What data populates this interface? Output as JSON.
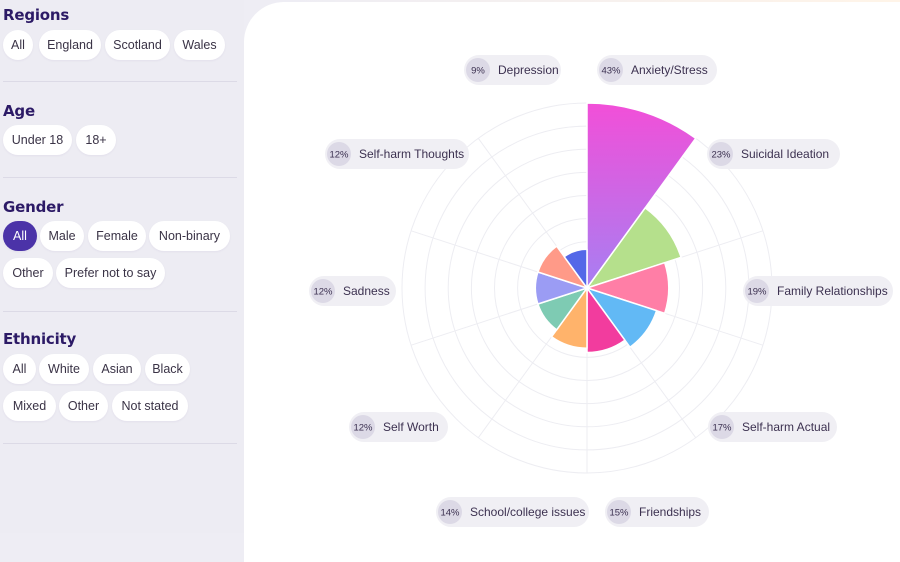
{
  "filters": {
    "regions": {
      "title": "Regions",
      "options": [
        "All",
        "England",
        "Scotland",
        "Wales"
      ]
    },
    "age": {
      "title": "Age",
      "options": [
        "Under 18",
        "18+"
      ]
    },
    "gender": {
      "title": "Gender",
      "options": [
        "All",
        "Male",
        "Female",
        "Non-binary",
        "Other",
        "Prefer not to say"
      ],
      "selected": "All"
    },
    "ethnicity": {
      "title": "Ethnicity",
      "options": [
        "All",
        "White",
        "Asian",
        "Black",
        "Mixed",
        "Other",
        "Not stated"
      ]
    }
  },
  "chart_data": {
    "type": "polar-area",
    "categories": [
      "Anxiety/Stress",
      "Suicidal Ideation",
      "Family Relationships",
      "Self-harm Actual",
      "Friendships",
      "School/college issues",
      "Self Worth",
      "Sadness",
      "Self-harm Thoughts",
      "Depression"
    ],
    "values": [
      43,
      23,
      19,
      17,
      15,
      14,
      12,
      12,
      12,
      9
    ],
    "labels": [
      "43%",
      "23%",
      "19%",
      "17%",
      "15%",
      "14%",
      "12%",
      "12%",
      "12%",
      "9%"
    ],
    "colors": [
      "#ec4fd6",
      "#b5e08c",
      "#ff7ea6",
      "#62b9f5",
      "#f23c9e",
      "#ffb36b",
      "#7ecbb3",
      "#9b9cf4",
      "#ff9a88",
      "#5468e8"
    ],
    "accent": "#4b33a8",
    "grid": true
  }
}
